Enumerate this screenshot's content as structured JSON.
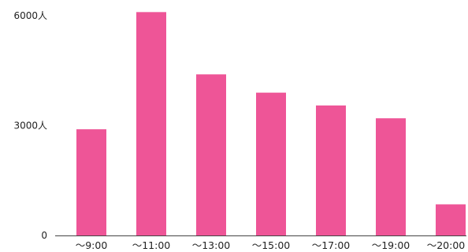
{
  "chart_data": {
    "type": "bar",
    "categories": [
      "〜9:00",
      "〜11:00",
      "〜13:00",
      "〜15:00",
      "〜17:00",
      "〜19:00",
      "〜20:00"
    ],
    "values": [
      2900,
      6100,
      4400,
      3900,
      3550,
      3200,
      850
    ],
    "ylim": [
      0,
      6000
    ],
    "yticks": [
      {
        "value": 0,
        "label": "0"
      },
      {
        "value": 3000,
        "label": "3000人"
      },
      {
        "value": 6000,
        "label": "6000人"
      }
    ],
    "title": "",
    "xlabel": "",
    "ylabel": "",
    "grid": false,
    "bar_color": "#ee5597",
    "axis_color": "#444444"
  }
}
